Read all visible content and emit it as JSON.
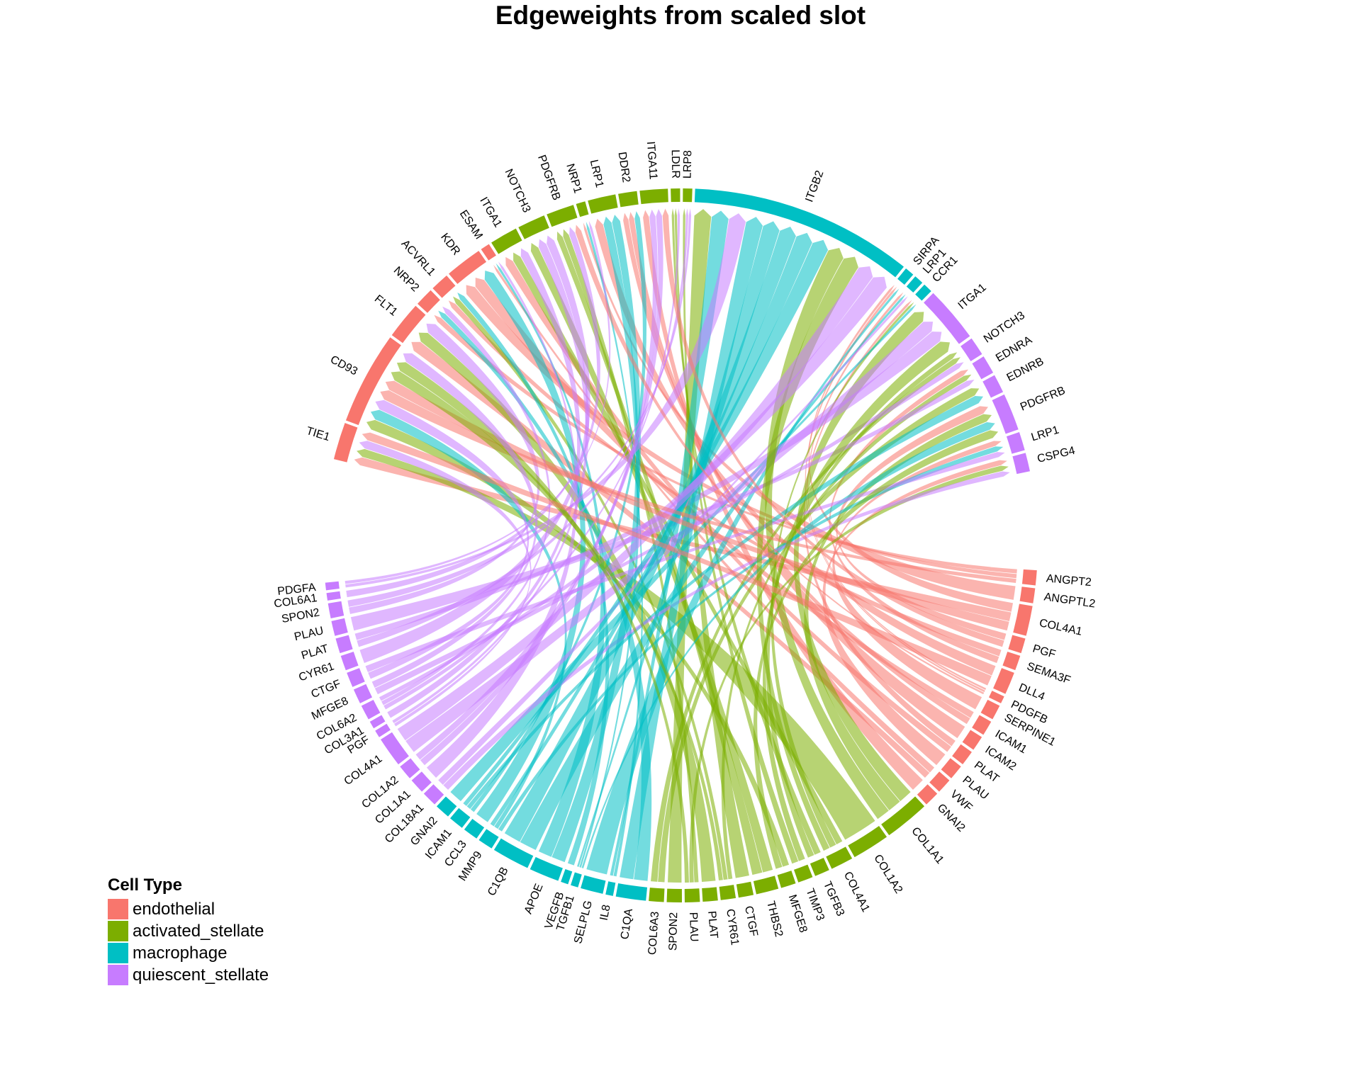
{
  "title": "Edgeweights from scaled slot",
  "legend": {
    "title": "Cell Type",
    "items": [
      {
        "label": "endothelial",
        "color": "#F8766D"
      },
      {
        "label": "activated_stellate",
        "color": "#7CAE00"
      },
      {
        "label": "macrophage",
        "color": "#00BFC4"
      },
      {
        "label": "quiescent_stellate",
        "color": "#C77CFF"
      }
    ]
  },
  "cell_types": {
    "endothelial": "#F8766D",
    "activated_stellate": "#7CAE00",
    "macrophage": "#00BFC4",
    "quiescent_stellate": "#C77CFF"
  },
  "receptors": [
    {
      "label": "TIE1",
      "type": "endothelial"
    },
    {
      "label": "CD93",
      "type": "endothelial"
    },
    {
      "label": "FLT1",
      "type": "endothelial"
    },
    {
      "label": "NRP2",
      "type": "endothelial"
    },
    {
      "label": "ACVRL1",
      "type": "endothelial"
    },
    {
      "label": "KDR",
      "type": "endothelial"
    },
    {
      "label": "ESAM",
      "type": "endothelial"
    },
    {
      "label": "ITGA1",
      "type": "activated_stellate"
    },
    {
      "label": "NOTCH3",
      "type": "activated_stellate"
    },
    {
      "label": "PDGFRB",
      "type": "activated_stellate"
    },
    {
      "label": "NRP1",
      "type": "activated_stellate"
    },
    {
      "label": "LRP1",
      "type": "activated_stellate"
    },
    {
      "label": "DDR2",
      "type": "activated_stellate"
    },
    {
      "label": "ITGA11",
      "type": "activated_stellate"
    },
    {
      "label": "LDLR",
      "type": "activated_stellate"
    },
    {
      "label": "LRP8",
      "type": "activated_stellate"
    },
    {
      "label": "ITGB2",
      "type": "macrophage"
    },
    {
      "label": "SIRPA",
      "type": "macrophage"
    },
    {
      "label": "LRP1",
      "type": "macrophage"
    },
    {
      "label": "CCR1",
      "type": "macrophage"
    },
    {
      "label": "ITGA1",
      "type": "quiescent_stellate"
    },
    {
      "label": "NOTCH3",
      "type": "quiescent_stellate"
    },
    {
      "label": "EDNRA",
      "type": "quiescent_stellate"
    },
    {
      "label": "EDNRB",
      "type": "quiescent_stellate"
    },
    {
      "label": "PDGFRB",
      "type": "quiescent_stellate"
    },
    {
      "label": "LRP1",
      "type": "quiescent_stellate"
    },
    {
      "label": "CSPG4",
      "type": "quiescent_stellate"
    }
  ],
  "ligands": [
    {
      "label": "ANGPT2",
      "type": "endothelial"
    },
    {
      "label": "ANGPTL2",
      "type": "endothelial"
    },
    {
      "label": "COL4A1",
      "type": "endothelial"
    },
    {
      "label": "PGF",
      "type": "endothelial"
    },
    {
      "label": "SEMA3F",
      "type": "endothelial"
    },
    {
      "label": "DLL4",
      "type": "endothelial"
    },
    {
      "label": "PDGFB",
      "type": "endothelial"
    },
    {
      "label": "SERPINE1",
      "type": "endothelial"
    },
    {
      "label": "ICAM1",
      "type": "endothelial"
    },
    {
      "label": "ICAM2",
      "type": "endothelial"
    },
    {
      "label": "PLAT",
      "type": "endothelial"
    },
    {
      "label": "PLAU",
      "type": "endothelial"
    },
    {
      "label": "VWF",
      "type": "endothelial"
    },
    {
      "label": "GNAI2",
      "type": "endothelial"
    },
    {
      "label": "COL1A1",
      "type": "activated_stellate"
    },
    {
      "label": "COL1A2",
      "type": "activated_stellate"
    },
    {
      "label": "COL4A1",
      "type": "activated_stellate"
    },
    {
      "label": "TGFB3",
      "type": "activated_stellate"
    },
    {
      "label": "TIMP3",
      "type": "activated_stellate"
    },
    {
      "label": "MFGE8",
      "type": "activated_stellate"
    },
    {
      "label": "THBS2",
      "type": "activated_stellate"
    },
    {
      "label": "CTGF",
      "type": "activated_stellate"
    },
    {
      "label": "CYR61",
      "type": "activated_stellate"
    },
    {
      "label": "PLAT",
      "type": "activated_stellate"
    },
    {
      "label": "PLAU",
      "type": "activated_stellate"
    },
    {
      "label": "SPON2",
      "type": "activated_stellate"
    },
    {
      "label": "COL6A3",
      "type": "activated_stellate"
    },
    {
      "label": "C1QA",
      "type": "macrophage"
    },
    {
      "label": "IL8",
      "type": "macrophage"
    },
    {
      "label": "SELPLG",
      "type": "macrophage"
    },
    {
      "label": "TGFB1",
      "type": "macrophage"
    },
    {
      "label": "VEGFB",
      "type": "macrophage"
    },
    {
      "label": "APOE",
      "type": "macrophage"
    },
    {
      "label": "C1QB",
      "type": "macrophage"
    },
    {
      "label": "MMP9",
      "type": "macrophage"
    },
    {
      "label": "CCL3",
      "type": "macrophage"
    },
    {
      "label": "ICAM1",
      "type": "macrophage"
    },
    {
      "label": "GNAI2",
      "type": "macrophage"
    },
    {
      "label": "COL18A1",
      "type": "quiescent_stellate"
    },
    {
      "label": "COL1A1",
      "type": "quiescent_stellate"
    },
    {
      "label": "COL1A2",
      "type": "quiescent_stellate"
    },
    {
      "label": "COL4A1",
      "type": "quiescent_stellate"
    },
    {
      "label": "PGF",
      "type": "quiescent_stellate"
    },
    {
      "label": "COL3A1",
      "type": "quiescent_stellate"
    },
    {
      "label": "COL6A2",
      "type": "quiescent_stellate"
    },
    {
      "label": "MFGE8",
      "type": "quiescent_stellate"
    },
    {
      "label": "CTGF",
      "type": "quiescent_stellate"
    },
    {
      "label": "CYR61",
      "type": "quiescent_stellate"
    },
    {
      "label": "PLAT",
      "type": "quiescent_stellate"
    },
    {
      "label": "PLAU",
      "type": "quiescent_stellate"
    },
    {
      "label": "SPON2",
      "type": "quiescent_stellate"
    },
    {
      "label": "COL6A1",
      "type": "quiescent_stellate"
    },
    {
      "label": "PDGFA",
      "type": "quiescent_stellate"
    }
  ]
}
